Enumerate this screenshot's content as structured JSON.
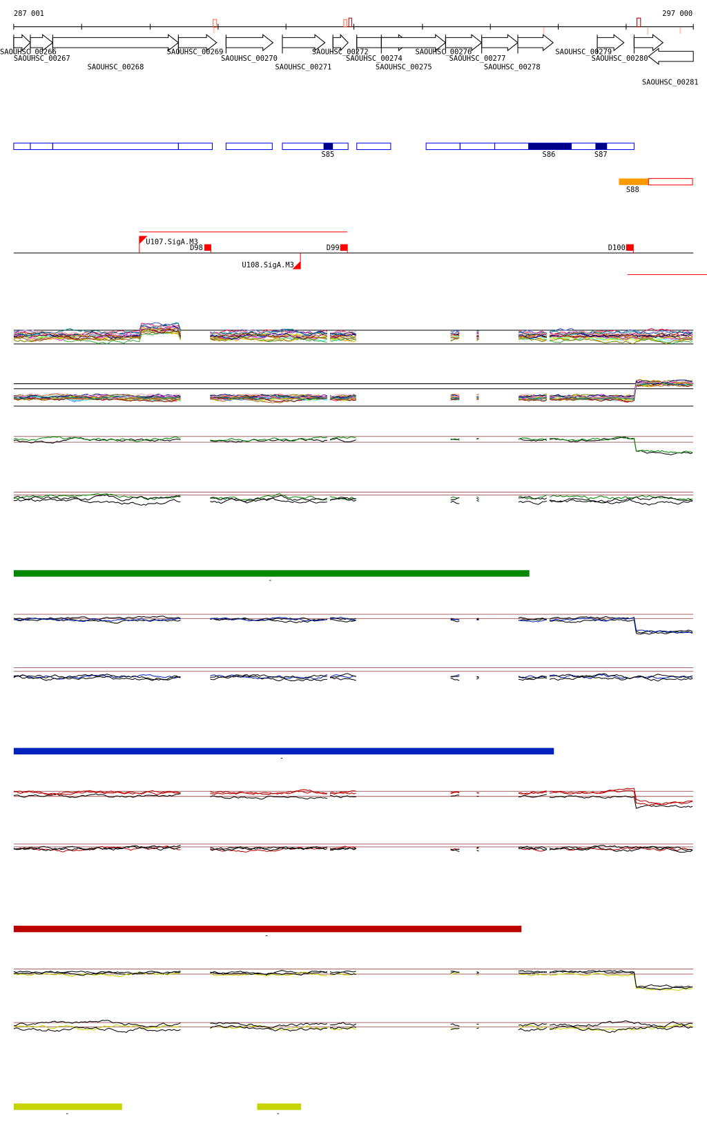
{
  "ruler": {
    "start_label": "287 001",
    "end_label": "297 000"
  },
  "genes": [
    "SAOUHSC_00266",
    "SAOUHSC_00267",
    "SAOUHSC_00268",
    "SAOUHSC_00269",
    "SAOUHSC_00270",
    "SAOUHSC_00271",
    "SAOUHSC_00272",
    "SAOUHSC_00274",
    "SAOUHSC_00275",
    "SAOUHSC_00276",
    "SAOUHSC_00277",
    "SAOUHSC_00278",
    "SAOUHSC_00279",
    "SAOUHSC_00280",
    "SAOUHSC_00281"
  ],
  "segments": {
    "S85": "S85",
    "S86": "S86",
    "S87": "S87",
    "S88": "S88"
  },
  "features": {
    "u107": "U107.SigA.M3",
    "u108": "U108.SigA.M3",
    "d98": "D98",
    "d99": "D99",
    "d100": "D100"
  },
  "conditions": [
    {
      "color": "#008800",
      "label": "-"
    },
    {
      "color": "#0022bb",
      "label": "-"
    },
    {
      "color": "#bb0000",
      "label": "-"
    },
    {
      "color": "#c8d400",
      "label": "-",
      "label2": "-"
    }
  ],
  "colors": {
    "gene": "#000000",
    "segment": "#0000ee",
    "segment_dark": "#000088",
    "feature": "#ff0000",
    "orange": "#ff9900"
  }
}
